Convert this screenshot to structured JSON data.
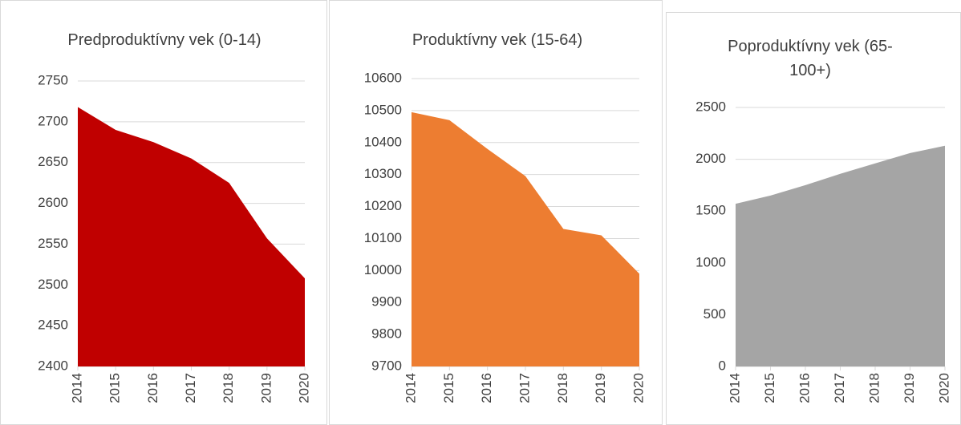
{
  "chart_data": [
    {
      "type": "area",
      "title": "Predproduktívny vek (0-14)",
      "categories": [
        "2014",
        "2015",
        "2016",
        "2017",
        "2018",
        "2019",
        "2020"
      ],
      "values": [
        2718,
        2690,
        2675,
        2655,
        2625,
        2557,
        2508
      ],
      "color": "#c00000",
      "ylim": [
        2400,
        2750
      ],
      "yticks": [
        2400,
        2450,
        2500,
        2550,
        2600,
        2650,
        2700,
        2750
      ],
      "grid": true
    },
    {
      "type": "area",
      "title": "Produktívny vek (15-64)",
      "categories": [
        "2014",
        "2015",
        "2016",
        "2017",
        "2018",
        "2019",
        "2020"
      ],
      "values": [
        10495,
        10470,
        10380,
        10295,
        10130,
        10110,
        9990
      ],
      "color": "#ed7d31",
      "ylim": [
        9700,
        10600
      ],
      "yticks": [
        9700,
        9800,
        9900,
        10000,
        10100,
        10200,
        10300,
        10400,
        10500,
        10600
      ],
      "grid": true
    },
    {
      "type": "area",
      "title": "Poproduktívny vek (65-100+)",
      "categories": [
        "2014",
        "2015",
        "2016",
        "2017",
        "2018",
        "2019",
        "2020"
      ],
      "values": [
        1570,
        1650,
        1750,
        1860,
        1960,
        2060,
        2130
      ],
      "color": "#a5a5a5",
      "ylim": [
        0,
        2500
      ],
      "yticks": [
        0,
        500,
        1000,
        1500,
        2000,
        2500
      ],
      "grid": true
    }
  ]
}
